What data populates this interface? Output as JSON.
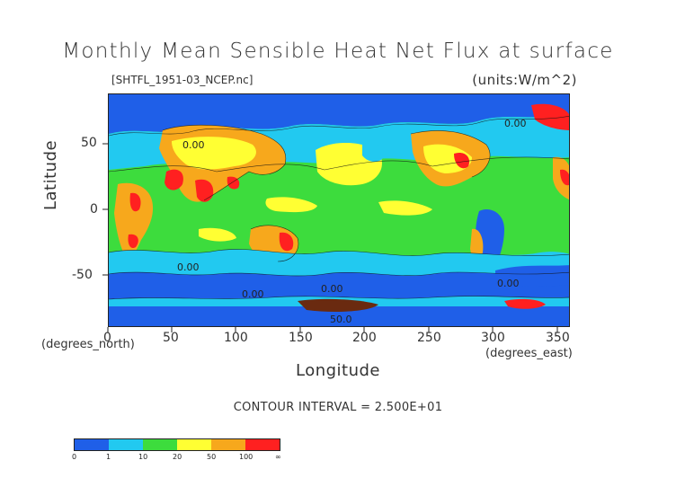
{
  "title": "Monthly Mean Sensible Heat Net Flux at surface",
  "filename": "[SHTFL_1951-03_NCEP.nc]",
  "units": "(units:W/m^2)",
  "axes": {
    "x_title": "Longitude",
    "y_title": "Latitude",
    "x_unit_label": "(degrees_east)",
    "y_unit_label": "(degrees_north)",
    "x_ticks": [
      "0",
      "50",
      "100",
      "150",
      "200",
      "250",
      "300",
      "350"
    ],
    "y_ticks": [
      "50",
      "0",
      "-50"
    ]
  },
  "contour_interval": "CONTOUR INTERVAL = 2.500E+01",
  "map_labels": [
    "0.00",
    "0.00",
    "0.00",
    "0.00",
    "0.00",
    "50.0",
    "0.00"
  ],
  "colorbar": {
    "colors": [
      "#1f5fe8",
      "#22c9f0",
      "#3ddc3d",
      "#ffff33",
      "#f7a81c",
      "#ff2020"
    ],
    "labels": [
      "0",
      "1",
      "10",
      "20",
      "50",
      "100",
      "∞"
    ]
  }
}
